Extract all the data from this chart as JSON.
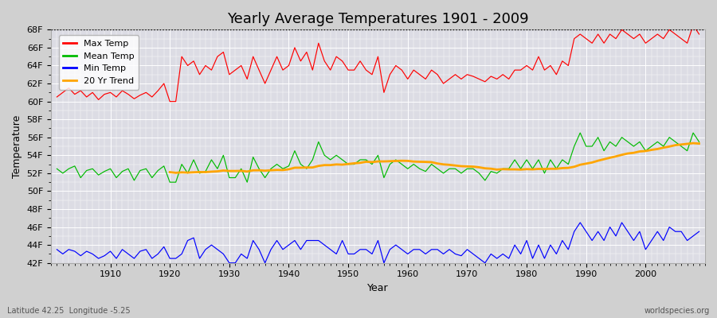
{
  "title": "Yearly Average Temperatures 1901 - 2009",
  "xlabel": "Year",
  "ylabel": "Temperature",
  "subtitle_left": "Latitude 42.25  Longitude -5.25",
  "subtitle_right": "worldspecies.org",
  "year_start": 1901,
  "year_end": 2009,
  "ylim": [
    42,
    68
  ],
  "yticks": [
    42,
    44,
    46,
    48,
    50,
    52,
    54,
    56,
    58,
    60,
    62,
    64,
    66,
    68
  ],
  "ytick_labels": [
    "42F",
    "44F",
    "46F",
    "48F",
    "50F",
    "52F",
    "54F",
    "56F",
    "58F",
    "60F",
    "62F",
    "64F",
    "66F",
    "68F"
  ],
  "dotted_line_y": 68,
  "fig_bg_color": "#d0d0d0",
  "plot_bg_color": "#dcdce4",
  "grid_color": "#ffffff",
  "max_temp_color": "#ff0000",
  "mean_temp_color": "#00bb00",
  "min_temp_color": "#0000ff",
  "trend_color": "#ffa500",
  "legend_labels": [
    "Max Temp",
    "Mean Temp",
    "Min Temp",
    "20 Yr Trend"
  ],
  "legend_colors": [
    "#ff0000",
    "#00bb00",
    "#0000ff",
    "#ffa500"
  ],
  "max_temp": [
    60.5,
    61.0,
    61.5,
    60.8,
    61.2,
    60.5,
    61.0,
    60.2,
    60.8,
    61.0,
    60.5,
    61.2,
    60.8,
    60.3,
    60.7,
    61.0,
    60.5,
    61.2,
    62.0,
    60.0,
    60.0,
    65.0,
    64.0,
    64.5,
    63.0,
    64.0,
    63.5,
    65.0,
    65.5,
    63.0,
    63.5,
    64.0,
    62.5,
    65.0,
    63.5,
    62.0,
    63.5,
    65.0,
    63.5,
    64.0,
    66.0,
    64.5,
    65.5,
    63.5,
    66.5,
    64.5,
    63.5,
    65.0,
    64.5,
    63.5,
    63.5,
    64.5,
    63.5,
    63.0,
    65.0,
    61.0,
    63.0,
    64.0,
    63.5,
    62.5,
    63.5,
    63.0,
    62.5,
    63.5,
    63.0,
    62.0,
    62.5,
    63.0,
    62.5,
    63.0,
    62.8,
    62.5,
    62.2,
    62.8,
    62.5,
    63.0,
    62.5,
    63.5,
    63.5,
    64.0,
    63.5,
    65.0,
    63.5,
    64.0,
    63.0,
    64.5,
    64.0,
    67.0,
    67.5,
    67.0,
    66.5,
    67.5,
    66.5,
    67.5,
    67.0,
    68.0,
    67.5,
    67.0,
    67.5,
    66.5,
    67.0,
    67.5,
    67.0,
    68.0,
    67.5,
    67.0,
    66.5,
    68.5,
    67.5
  ],
  "mean_temp": [
    52.5,
    52.0,
    52.5,
    52.8,
    51.5,
    52.3,
    52.5,
    51.8,
    52.2,
    52.5,
    51.5,
    52.2,
    52.5,
    51.2,
    52.3,
    52.5,
    51.5,
    52.3,
    52.8,
    51.0,
    51.0,
    53.0,
    52.0,
    53.5,
    52.0,
    52.2,
    53.5,
    52.5,
    54.0,
    51.5,
    51.5,
    52.5,
    51.0,
    53.8,
    52.5,
    51.5,
    52.5,
    53.0,
    52.5,
    52.8,
    54.5,
    53.0,
    52.5,
    53.5,
    55.5,
    54.0,
    53.5,
    54.0,
    53.5,
    53.0,
    53.0,
    53.5,
    53.5,
    53.0,
    54.0,
    51.5,
    53.0,
    53.5,
    53.0,
    52.5,
    53.0,
    52.5,
    52.2,
    53.0,
    52.5,
    52.0,
    52.5,
    52.5,
    52.0,
    52.5,
    52.5,
    52.0,
    51.2,
    52.2,
    52.0,
    52.5,
    52.5,
    53.5,
    52.5,
    53.5,
    52.5,
    53.5,
    52.0,
    53.5,
    52.5,
    53.5,
    53.0,
    55.0,
    56.5,
    55.0,
    55.0,
    56.0,
    54.5,
    55.5,
    55.0,
    56.0,
    55.5,
    55.0,
    55.5,
    54.5,
    55.0,
    55.5,
    55.0,
    56.0,
    55.5,
    55.0,
    54.5,
    56.5,
    55.5
  ],
  "min_temp": [
    43.5,
    43.0,
    43.5,
    43.3,
    42.8,
    43.3,
    43.0,
    42.5,
    42.8,
    43.3,
    42.5,
    43.5,
    43.0,
    42.5,
    43.3,
    43.5,
    42.5,
    43.0,
    43.8,
    42.5,
    42.5,
    43.0,
    44.5,
    44.8,
    42.5,
    43.5,
    44.0,
    43.5,
    43.0,
    42.0,
    42.0,
    43.0,
    42.5,
    44.5,
    43.5,
    42.0,
    43.5,
    44.5,
    43.5,
    44.0,
    44.5,
    43.5,
    44.5,
    44.5,
    44.5,
    44.0,
    43.5,
    43.0,
    44.5,
    43.0,
    43.0,
    43.5,
    43.5,
    43.0,
    44.5,
    42.0,
    43.5,
    44.0,
    43.5,
    43.0,
    43.5,
    43.5,
    43.0,
    43.5,
    43.5,
    43.0,
    43.5,
    43.0,
    42.8,
    43.5,
    43.0,
    42.5,
    42.0,
    43.0,
    42.5,
    43.0,
    42.5,
    44.0,
    43.0,
    44.5,
    42.5,
    44.0,
    42.5,
    44.0,
    43.0,
    44.5,
    43.5,
    45.5,
    46.5,
    45.5,
    44.5,
    45.5,
    44.5,
    46.0,
    45.0,
    46.5,
    45.5,
    44.5,
    45.5,
    43.5,
    44.5,
    45.5,
    44.5,
    46.0,
    45.5,
    45.5,
    44.5,
    45.0,
    45.5
  ]
}
